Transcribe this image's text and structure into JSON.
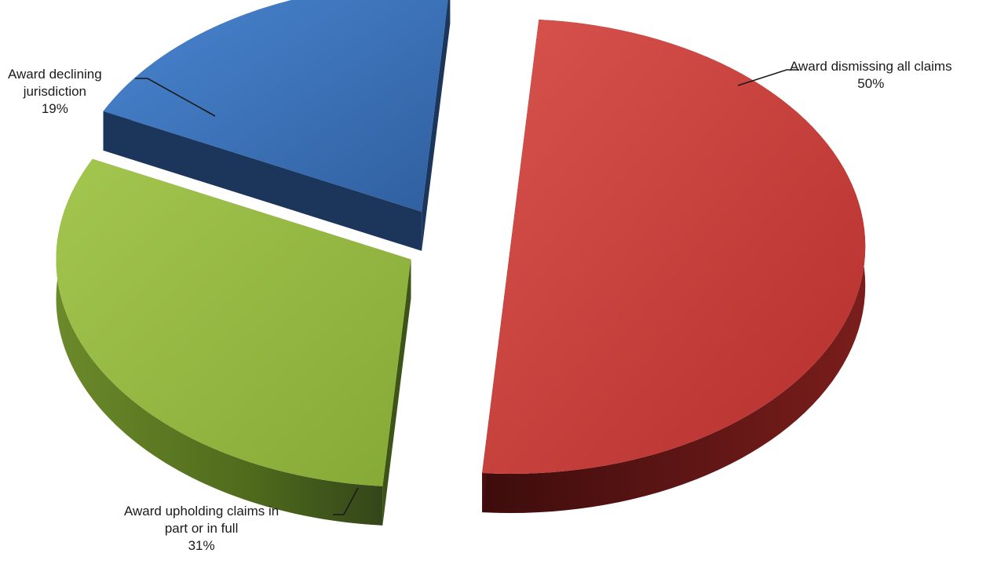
{
  "chart_data": {
    "type": "pie",
    "style": "3d-exploded",
    "title": "",
    "legend": "none",
    "categories": [
      "Award dismissing all claims",
      "Award upholding claims in part or in full",
      "Award declining jurisdiction"
    ],
    "values": [
      50,
      31,
      19
    ],
    "value_labels": [
      "50%",
      "31%",
      "19%"
    ],
    "colors": [
      "#c93a36",
      "#8cb23a",
      "#3a6fb8"
    ],
    "label_lines": [
      [
        "Award dismissing all claims"
      ],
      [
        "Award upholding claims in",
        "part or in full"
      ],
      [
        "Award declining",
        "jurisdiction"
      ]
    ]
  }
}
